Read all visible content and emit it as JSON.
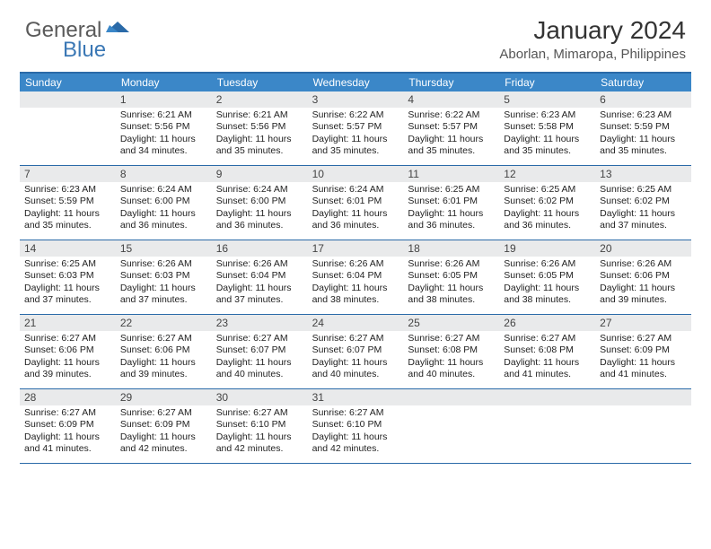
{
  "logo": {
    "text1": "General",
    "text2": "Blue"
  },
  "title": "January 2024",
  "location": "Aborlan, Mimaropa, Philippines",
  "colors": {
    "header_bar": "#3b87c8",
    "border": "#2a6aa8",
    "daynum_bg": "#e9eaeb",
    "logo_gray": "#5a5a5a",
    "logo_blue": "#3b78b5"
  },
  "weekdays": [
    "Sunday",
    "Monday",
    "Tuesday",
    "Wednesday",
    "Thursday",
    "Friday",
    "Saturday"
  ],
  "weeks": [
    [
      {
        "n": "",
        "sr": "",
        "ss": "",
        "dl": ""
      },
      {
        "n": "1",
        "sr": "6:21 AM",
        "ss": "5:56 PM",
        "dl": "11 hours and 34 minutes."
      },
      {
        "n": "2",
        "sr": "6:21 AM",
        "ss": "5:56 PM",
        "dl": "11 hours and 35 minutes."
      },
      {
        "n": "3",
        "sr": "6:22 AM",
        "ss": "5:57 PM",
        "dl": "11 hours and 35 minutes."
      },
      {
        "n": "4",
        "sr": "6:22 AM",
        "ss": "5:57 PM",
        "dl": "11 hours and 35 minutes."
      },
      {
        "n": "5",
        "sr": "6:23 AM",
        "ss": "5:58 PM",
        "dl": "11 hours and 35 minutes."
      },
      {
        "n": "6",
        "sr": "6:23 AM",
        "ss": "5:59 PM",
        "dl": "11 hours and 35 minutes."
      }
    ],
    [
      {
        "n": "7",
        "sr": "6:23 AM",
        "ss": "5:59 PM",
        "dl": "11 hours and 35 minutes."
      },
      {
        "n": "8",
        "sr": "6:24 AM",
        "ss": "6:00 PM",
        "dl": "11 hours and 36 minutes."
      },
      {
        "n": "9",
        "sr": "6:24 AM",
        "ss": "6:00 PM",
        "dl": "11 hours and 36 minutes."
      },
      {
        "n": "10",
        "sr": "6:24 AM",
        "ss": "6:01 PM",
        "dl": "11 hours and 36 minutes."
      },
      {
        "n": "11",
        "sr": "6:25 AM",
        "ss": "6:01 PM",
        "dl": "11 hours and 36 minutes."
      },
      {
        "n": "12",
        "sr": "6:25 AM",
        "ss": "6:02 PM",
        "dl": "11 hours and 36 minutes."
      },
      {
        "n": "13",
        "sr": "6:25 AM",
        "ss": "6:02 PM",
        "dl": "11 hours and 37 minutes."
      }
    ],
    [
      {
        "n": "14",
        "sr": "6:25 AM",
        "ss": "6:03 PM",
        "dl": "11 hours and 37 minutes."
      },
      {
        "n": "15",
        "sr": "6:26 AM",
        "ss": "6:03 PM",
        "dl": "11 hours and 37 minutes."
      },
      {
        "n": "16",
        "sr": "6:26 AM",
        "ss": "6:04 PM",
        "dl": "11 hours and 37 minutes."
      },
      {
        "n": "17",
        "sr": "6:26 AM",
        "ss": "6:04 PM",
        "dl": "11 hours and 38 minutes."
      },
      {
        "n": "18",
        "sr": "6:26 AM",
        "ss": "6:05 PM",
        "dl": "11 hours and 38 minutes."
      },
      {
        "n": "19",
        "sr": "6:26 AM",
        "ss": "6:05 PM",
        "dl": "11 hours and 38 minutes."
      },
      {
        "n": "20",
        "sr": "6:26 AM",
        "ss": "6:06 PM",
        "dl": "11 hours and 39 minutes."
      }
    ],
    [
      {
        "n": "21",
        "sr": "6:27 AM",
        "ss": "6:06 PM",
        "dl": "11 hours and 39 minutes."
      },
      {
        "n": "22",
        "sr": "6:27 AM",
        "ss": "6:06 PM",
        "dl": "11 hours and 39 minutes."
      },
      {
        "n": "23",
        "sr": "6:27 AM",
        "ss": "6:07 PM",
        "dl": "11 hours and 40 minutes."
      },
      {
        "n": "24",
        "sr": "6:27 AM",
        "ss": "6:07 PM",
        "dl": "11 hours and 40 minutes."
      },
      {
        "n": "25",
        "sr": "6:27 AM",
        "ss": "6:08 PM",
        "dl": "11 hours and 40 minutes."
      },
      {
        "n": "26",
        "sr": "6:27 AM",
        "ss": "6:08 PM",
        "dl": "11 hours and 41 minutes."
      },
      {
        "n": "27",
        "sr": "6:27 AM",
        "ss": "6:09 PM",
        "dl": "11 hours and 41 minutes."
      }
    ],
    [
      {
        "n": "28",
        "sr": "6:27 AM",
        "ss": "6:09 PM",
        "dl": "11 hours and 41 minutes."
      },
      {
        "n": "29",
        "sr": "6:27 AM",
        "ss": "6:09 PM",
        "dl": "11 hours and 42 minutes."
      },
      {
        "n": "30",
        "sr": "6:27 AM",
        "ss": "6:10 PM",
        "dl": "11 hours and 42 minutes."
      },
      {
        "n": "31",
        "sr": "6:27 AM",
        "ss": "6:10 PM",
        "dl": "11 hours and 42 minutes."
      },
      {
        "n": "",
        "sr": "",
        "ss": "",
        "dl": ""
      },
      {
        "n": "",
        "sr": "",
        "ss": "",
        "dl": ""
      },
      {
        "n": "",
        "sr": "",
        "ss": "",
        "dl": ""
      }
    ]
  ],
  "labels": {
    "sunrise": "Sunrise:",
    "sunset": "Sunset:",
    "daylight": "Daylight:"
  }
}
